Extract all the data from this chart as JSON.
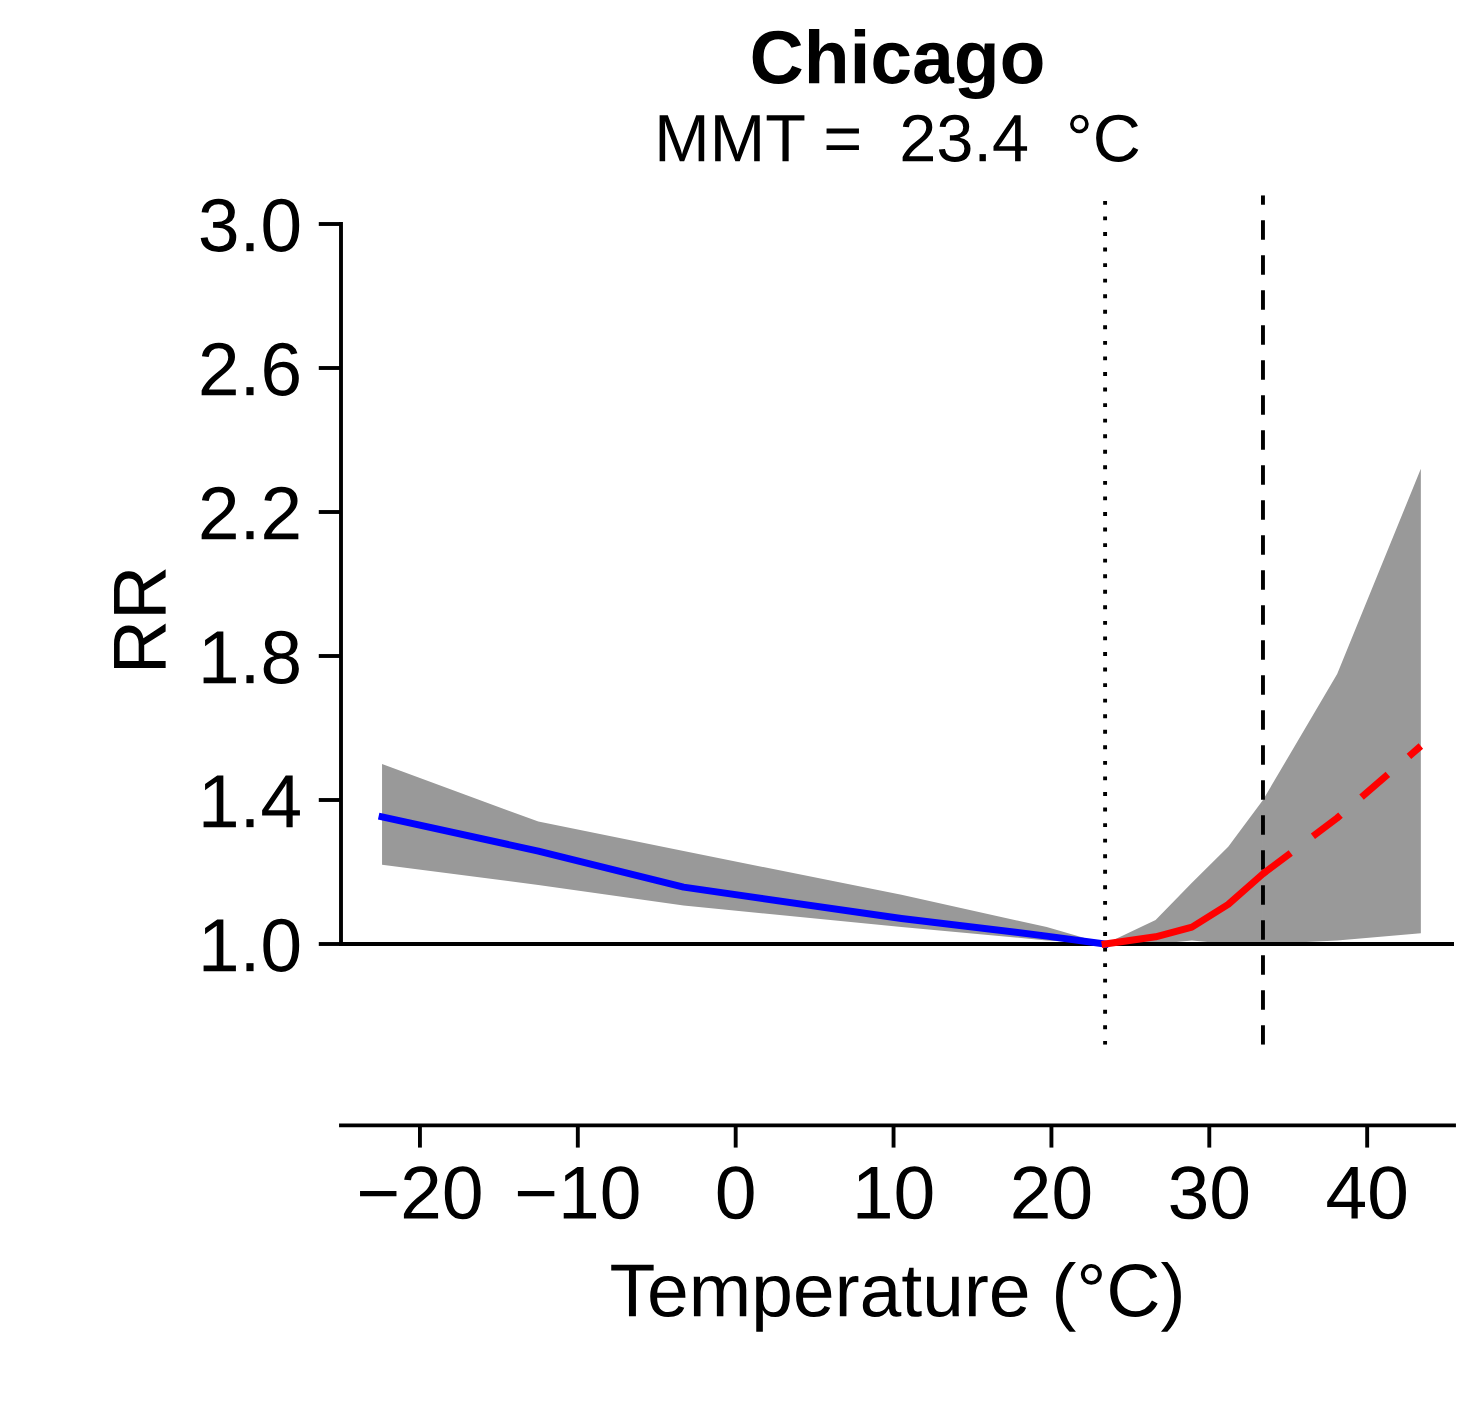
{
  "chart_data": {
    "type": "line",
    "title": "Chicago",
    "subtitle": "MMT =  23.4  °C",
    "xlabel": "Temperature (°C)",
    "ylabel": "RR",
    "xlim": [
      -25,
      45.5
    ],
    "xticks": [
      -20,
      -10,
      0,
      10,
      20,
      30,
      40
    ],
    "ylim": [
      0.72,
      3.08
    ],
    "yticks": [
      {
        "value": 1.0,
        "label": "1.0"
      },
      {
        "value": 1.4,
        "label": "1.4"
      },
      {
        "value": 1.8,
        "label": "1.8"
      },
      {
        "value": 2.2,
        "label": "2.2"
      },
      {
        "value": 2.6,
        "label": "2.6"
      },
      {
        "value": 3.0,
        "label": "3.0"
      }
    ],
    "grid": false,
    "legend": false,
    "series": [
      {
        "color": "#0000ff",
        "line_style": "solid",
        "x": [
          -22.4,
          -12.5,
          -3.3,
          10.5,
          19.7,
          23.4
        ],
        "values": [
          1.353,
          1.258,
          1.158,
          1.071,
          1.022,
          1.0
        ],
        "lower": [
          1.22,
          1.164,
          1.107,
          1.047,
          1.01,
          1.0
        ],
        "upper": [
          1.5,
          1.34,
          1.258,
          1.137,
          1.047,
          1.0
        ]
      },
      {
        "color": "#ff0000",
        "line_style": "solid",
        "x": [
          23.4,
          26.6,
          28.9,
          31.2,
          33.4
        ],
        "values": [
          1.0,
          1.02,
          1.047,
          1.11,
          1.195
        ],
        "lower": [
          1.0,
          1.0,
          1.01,
          1.0,
          1.0
        ],
        "upper": [
          1.0,
          1.067,
          1.17,
          1.27,
          1.4
        ]
      },
      {
        "color": "#ff0000",
        "line_style": "dashed",
        "x": [
          33.4,
          38.1,
          43.4
        ],
        "values": [
          1.195,
          1.35,
          1.55
        ],
        "lower": [
          1.0,
          1.01,
          1.03
        ],
        "upper": [
          1.4,
          1.75,
          2.32
        ]
      }
    ],
    "ref_lines": [
      {
        "axis": "x",
        "value": 23.4,
        "line_style": "dotted",
        "color": "#000000"
      },
      {
        "axis": "x",
        "value": 33.4,
        "line_style": "dashed",
        "color": "#000000"
      },
      {
        "axis": "y",
        "value": 1.0,
        "line_style": "solid",
        "color": "#000000"
      }
    ]
  }
}
